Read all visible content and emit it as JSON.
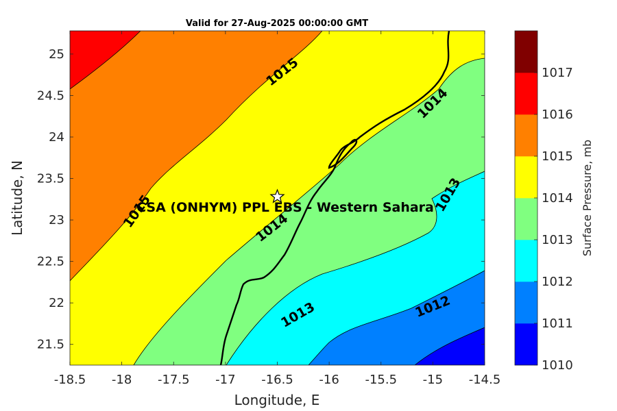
{
  "title": "Valid for 27-Aug-2025 00:00:00 GMT",
  "x_axis": {
    "label": "Longitude, E",
    "ticks": [
      "-18.5",
      "-18",
      "-17.5",
      "-17",
      "-16.5",
      "-16",
      "-15.5",
      "-15",
      "-14.5"
    ]
  },
  "y_axis": {
    "label": "Latitude, N",
    "ticks": [
      "21.5",
      "22",
      "22.5",
      "23",
      "23.5",
      "24",
      "24.5",
      "25"
    ]
  },
  "colorbar": {
    "label": "Surface Pressure, mb",
    "ticks": [
      "1010",
      "1011",
      "1012",
      "1013",
      "1014",
      "1015",
      "1016",
      "1017"
    ],
    "colors": [
      "#0000ff",
      "#0080ff",
      "#00ffff",
      "#80ff80",
      "#ffff00",
      "#ff8000",
      "#ff0000",
      "#800000"
    ]
  },
  "station": {
    "name": "CSA (ONHYM) PPL EBS  - Western Sahara",
    "lon": -16.5,
    "lat": 23.28
  },
  "contour_labels": [
    {
      "text": "1015",
      "lon": -16.45,
      "lat": 24.78
    },
    {
      "text": "1014",
      "lon": -15.0,
      "lat": 24.4
    },
    {
      "text": "1015",
      "lon": -17.85,
      "lat": 23.1
    },
    {
      "text": "1014",
      "lon": -16.55,
      "lat": 22.9
    },
    {
      "text": "1013",
      "lon": -14.85,
      "lat": 23.3
    },
    {
      "text": "1013",
      "lon": -16.3,
      "lat": 21.85
    },
    {
      "text": "1012",
      "lon": -15.0,
      "lat": 21.95
    }
  ]
}
